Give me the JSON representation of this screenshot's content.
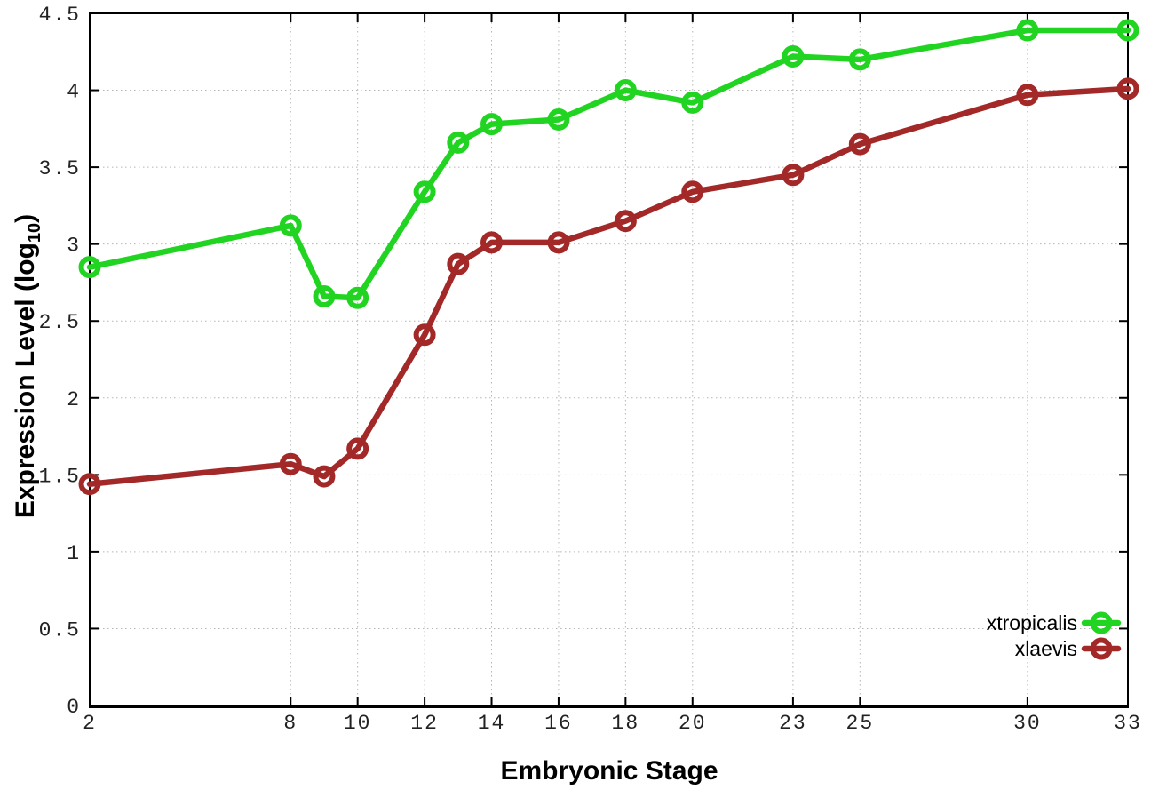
{
  "chart_data": {
    "type": "line",
    "title": "",
    "xlabel": "Embryonic Stage",
    "ylabel": "Expression Level (log10)",
    "ylabel_parts": [
      "Expression Level (log",
      "10",
      ")"
    ],
    "xlim": [
      2,
      33
    ],
    "ylim": [
      0,
      4.5
    ],
    "xticks": [
      2,
      8,
      10,
      12,
      14,
      16,
      18,
      20,
      23,
      25,
      30,
      33
    ],
    "xtick_labels": [
      "2",
      "8",
      "10",
      "12",
      "14",
      "16",
      "18",
      "20",
      "23",
      "25",
      "30",
      "33"
    ],
    "yticks": [
      0,
      0.5,
      1,
      1.5,
      2,
      2.5,
      3,
      3.5,
      4,
      4.5
    ],
    "ytick_labels": [
      "0",
      "0.5",
      "1",
      "1.5",
      "2",
      "2.5",
      "3",
      "3.5",
      "4",
      "4.5"
    ],
    "grid": true,
    "grid_style": "dotted",
    "legend_position": "bottom-right",
    "marker": "open-circle",
    "background_color": "#ffffff",
    "grid_color": "#b5b5b5",
    "axis_color": "#000000",
    "x": [
      2,
      8,
      9,
      10,
      12,
      13,
      14,
      16,
      18,
      20,
      23,
      25,
      30,
      33
    ],
    "series": [
      {
        "name": "xtropicalis",
        "color": "#22d422",
        "values": [
          2.85,
          3.12,
          2.66,
          2.65,
          3.34,
          3.66,
          3.78,
          3.81,
          4.0,
          3.92,
          4.22,
          4.2,
          4.39,
          4.39
        ]
      },
      {
        "name": "xlaevis",
        "color": "#a32929",
        "values": [
          1.44,
          1.57,
          1.49,
          1.67,
          2.41,
          2.87,
          3.01,
          3.01,
          3.15,
          3.34,
          3.45,
          3.65,
          3.97,
          4.01
        ]
      }
    ]
  }
}
